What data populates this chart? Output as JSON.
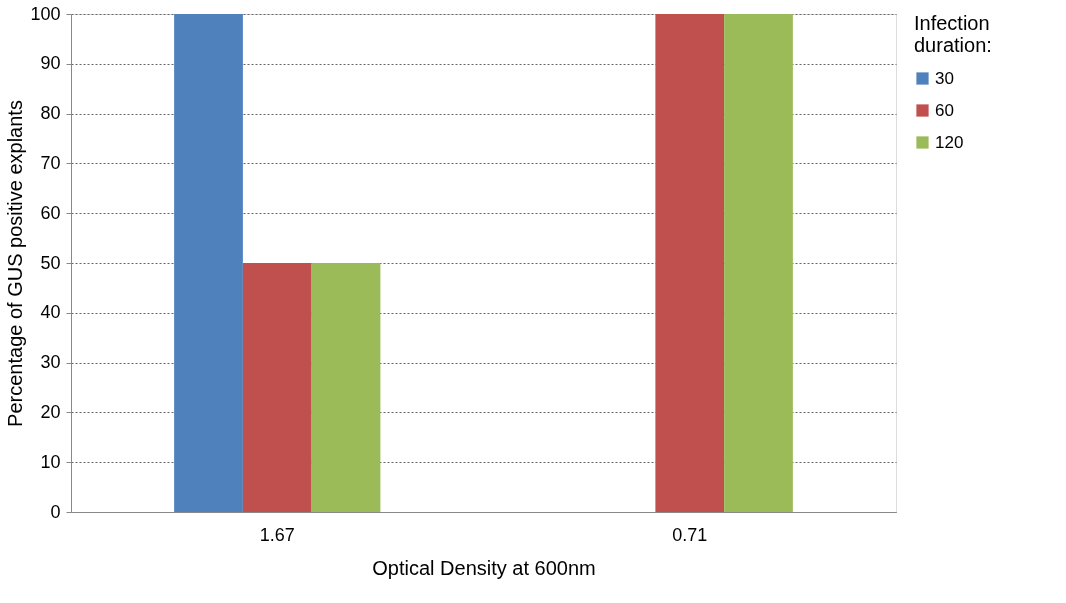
{
  "chart_data": {
    "type": "bar",
    "xlabel": "Optical Density at 600nm",
    "ylabel": "Percentage of GUS positive explants",
    "legend_title": "Infection duration:",
    "categories": [
      "1.67",
      "0.71"
    ],
    "series": [
      {
        "name": "30",
        "color": "#4f81bd",
        "values": [
          100,
          0
        ]
      },
      {
        "name": "60",
        "color": "#c0504d",
        "values": [
          50,
          100
        ]
      },
      {
        "name": "120",
        "color": "#9bbb59",
        "values": [
          50,
          100
        ]
      }
    ],
    "ylim": [
      0,
      100
    ],
    "yticks": [
      0,
      10,
      20,
      30,
      40,
      50,
      60,
      70,
      80,
      90,
      100
    ],
    "grid": "y",
    "legend": "right"
  }
}
